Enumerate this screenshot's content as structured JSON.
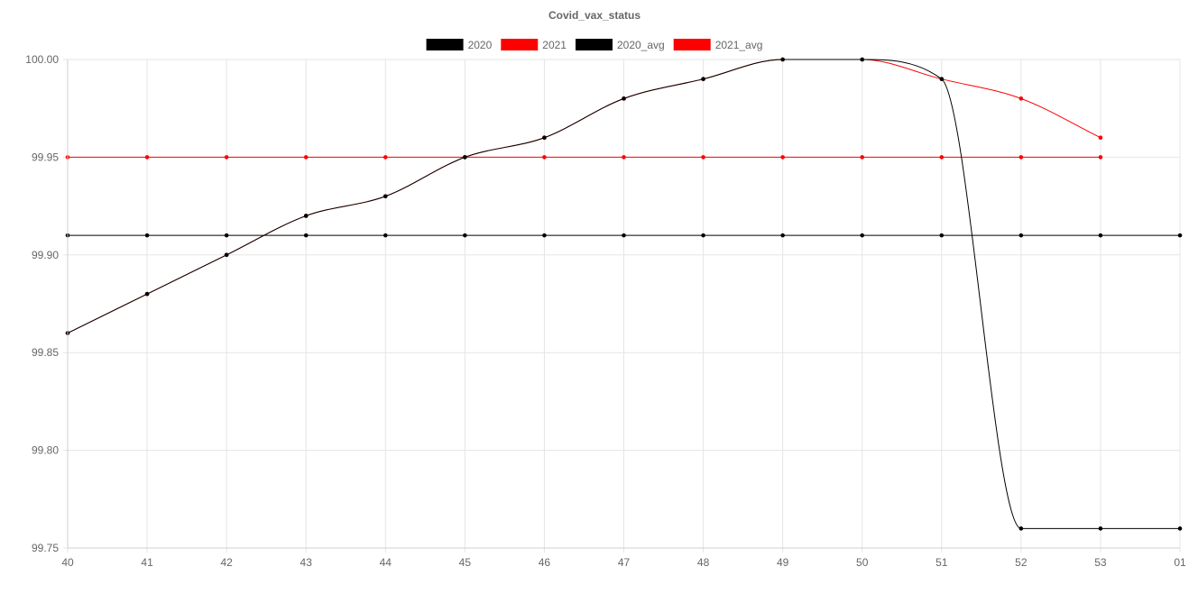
{
  "chart_data": {
    "type": "line",
    "title": "Covid_vax_status",
    "legend_position": "top",
    "grid": true,
    "categories": [
      "40",
      "41",
      "42",
      "43",
      "44",
      "45",
      "46",
      "47",
      "48",
      "49",
      "50",
      "51",
      "52",
      "53",
      "01"
    ],
    "ylim": [
      99.75,
      100.0
    ],
    "y_ticks": [
      "100.00",
      "99.95",
      "99.90",
      "99.85",
      "99.80",
      "99.75"
    ],
    "series": [
      {
        "name": "2020",
        "color": "#000000",
        "values": [
          99.86,
          99.88,
          99.9,
          99.92,
          99.93,
          99.95,
          99.96,
          99.98,
          99.99,
          100.0,
          100.0,
          99.99,
          99.76,
          99.76,
          99.76
        ]
      },
      {
        "name": "2021",
        "color": "#ff0000",
        "values": [
          99.86,
          99.88,
          99.9,
          99.92,
          99.93,
          99.95,
          99.96,
          99.98,
          99.99,
          100.0,
          100.0,
          99.99,
          99.98,
          99.96,
          null
        ]
      },
      {
        "name": "2020_avg",
        "color": "#000000",
        "values": [
          99.91,
          99.91,
          99.91,
          99.91,
          99.91,
          99.91,
          99.91,
          99.91,
          99.91,
          99.91,
          99.91,
          99.91,
          99.91,
          99.91,
          99.91
        ]
      },
      {
        "name": "2021_avg",
        "color": "#ff0000",
        "values": [
          99.95,
          99.95,
          99.95,
          99.95,
          99.95,
          99.95,
          99.95,
          99.95,
          99.95,
          99.95,
          99.95,
          99.95,
          99.95,
          99.95,
          null
        ]
      }
    ]
  }
}
